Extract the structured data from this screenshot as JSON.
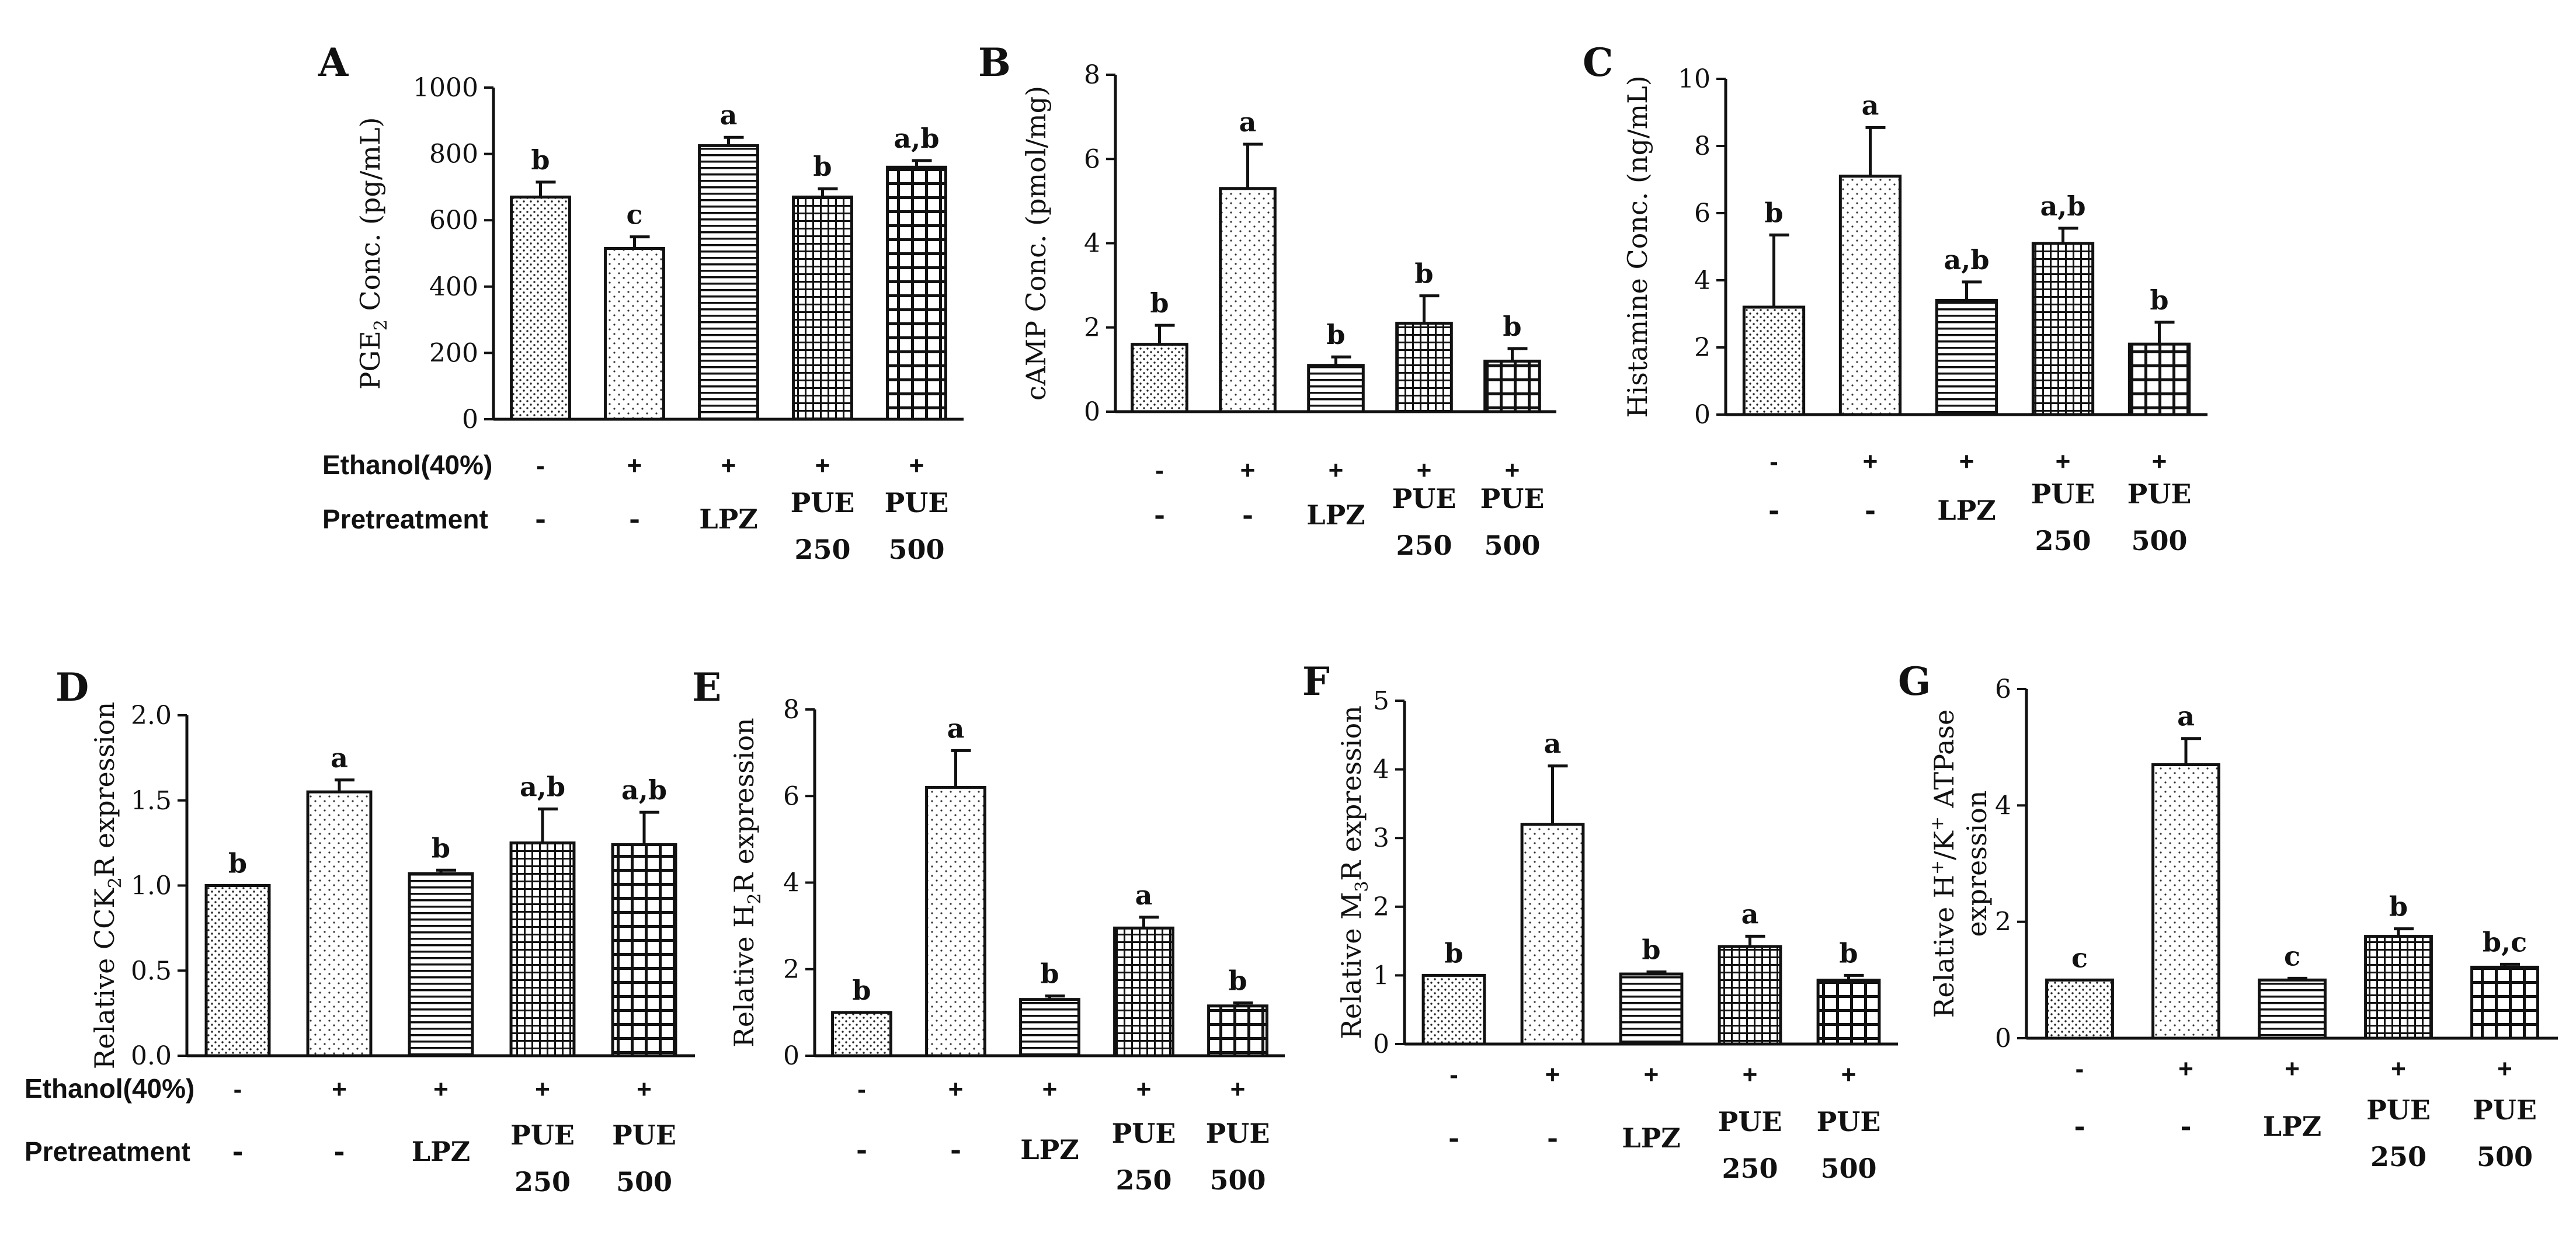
{
  "figure": {
    "row_labels": {
      "ethanol": "Ethanol(40%)",
      "pretreatment": "Pretreatment"
    }
  },
  "chart_data": [
    {
      "type": "bar",
      "panel": "A",
      "ylabel_parts": [
        "PGE",
        "2",
        " Conc. (pg/mL)"
      ],
      "ylim": [
        0,
        1000
      ],
      "yticks": [
        "0",
        "200",
        "400",
        "600",
        "800",
        "1000"
      ],
      "ethanol": [
        "-",
        "+",
        "+",
        "+",
        "+"
      ],
      "pretreatment": [
        [
          "-"
        ],
        [
          "-"
        ],
        [
          "LPZ"
        ],
        [
          "PUE",
          "250"
        ],
        [
          "PUE",
          "500"
        ]
      ],
      "values": [
        670,
        515,
        825,
        670,
        760
      ],
      "errors": [
        45,
        35,
        25,
        25,
        20
      ],
      "significance": [
        "b",
        "c",
        "a",
        "b",
        "a,b"
      ],
      "patterns": [
        "dots",
        "dots-sparse",
        "hlines",
        "grid-fine",
        "grid-bold"
      ]
    },
    {
      "type": "bar",
      "panel": "B",
      "ylabel_parts": [
        "cAMP Conc. (pmol/mg)"
      ],
      "ylim": [
        0,
        8
      ],
      "yticks": [
        "0",
        "2",
        "4",
        "6",
        "8"
      ],
      "ethanol": [
        "-",
        "+",
        "+",
        "+",
        "+"
      ],
      "pretreatment": [
        [
          "-"
        ],
        [
          "-"
        ],
        [
          "LPZ"
        ],
        [
          "PUE",
          "250"
        ],
        [
          "PUE",
          "500"
        ]
      ],
      "values": [
        1.6,
        5.3,
        1.1,
        2.1,
        1.2
      ],
      "errors": [
        0.45,
        1.05,
        0.2,
        0.65,
        0.3
      ],
      "significance": [
        "b",
        "a",
        "b",
        "b",
        "b"
      ],
      "patterns": [
        "dots",
        "dots-sparse",
        "hlines",
        "grid-fine",
        "grid-bold"
      ]
    },
    {
      "type": "bar",
      "panel": "C",
      "ylabel_parts": [
        "Histamine Conc. (ng/mL)"
      ],
      "ylim": [
        0,
        10
      ],
      "yticks": [
        "0",
        "2",
        "4",
        "6",
        "8",
        "10"
      ],
      "ethanol": [
        "-",
        "+",
        "+",
        "+",
        "+"
      ],
      "pretreatment": [
        [
          "-"
        ],
        [
          "-"
        ],
        [
          "LPZ"
        ],
        [
          "PUE",
          "250"
        ],
        [
          "PUE",
          "500"
        ]
      ],
      "values": [
        3.2,
        7.1,
        3.4,
        5.1,
        2.1
      ],
      "errors": [
        2.15,
        1.45,
        0.55,
        0.45,
        0.65
      ],
      "significance": [
        "b",
        "a",
        "a,b",
        "a,b",
        "b"
      ],
      "patterns": [
        "dots",
        "dots-sparse",
        "hlines",
        "grid-fine",
        "grid-bold"
      ]
    },
    {
      "type": "bar",
      "panel": "D",
      "ylabel_parts": [
        "Relative CCK",
        "2",
        "R expression"
      ],
      "ylim": [
        0,
        2.0
      ],
      "yticks": [
        "0.0",
        "0.5",
        "1.0",
        "1.5",
        "2.0"
      ],
      "ethanol": [
        "-",
        "+",
        "+",
        "+",
        "+"
      ],
      "pretreatment": [
        [
          "-"
        ],
        [
          "-"
        ],
        [
          "LPZ"
        ],
        [
          "PUE",
          "250"
        ],
        [
          "PUE",
          "500"
        ]
      ],
      "values": [
        1.0,
        1.55,
        1.07,
        1.25,
        1.24
      ],
      "errors": [
        0,
        0.07,
        0.02,
        0.2,
        0.19
      ],
      "significance": [
        "b",
        "a",
        "b",
        "a,b",
        "a,b"
      ],
      "patterns": [
        "dots",
        "dots-sparse",
        "hlines",
        "grid-fine",
        "grid-bold"
      ]
    },
    {
      "type": "bar",
      "panel": "E",
      "ylabel_parts": [
        "Relative H",
        "2",
        "R expression"
      ],
      "ylim": [
        0,
        8
      ],
      "yticks": [
        "0",
        "2",
        "4",
        "6",
        "8"
      ],
      "ethanol": [
        "-",
        "+",
        "+",
        "+",
        "+"
      ],
      "pretreatment": [
        [
          "-"
        ],
        [
          "-"
        ],
        [
          "LPZ"
        ],
        [
          "PUE",
          "250"
        ],
        [
          "PUE",
          "500"
        ]
      ],
      "values": [
        1.0,
        6.2,
        1.3,
        2.95,
        1.15
      ],
      "errors": [
        0,
        0.85,
        0.08,
        0.25,
        0.07
      ],
      "significance": [
        "b",
        "a",
        "b",
        "a",
        "b"
      ],
      "patterns": [
        "dots",
        "dots-sparse",
        "hlines",
        "grid-fine",
        "grid-bold"
      ]
    },
    {
      "type": "bar",
      "panel": "F",
      "ylabel_parts": [
        "Relative M",
        "3",
        "R expression"
      ],
      "ylim": [
        0,
        5
      ],
      "yticks": [
        "0",
        "1",
        "2",
        "3",
        "4",
        "5"
      ],
      "ethanol": [
        "-",
        "+",
        "+",
        "+",
        "+"
      ],
      "pretreatment": [
        [
          "-"
        ],
        [
          "-"
        ],
        [
          "LPZ"
        ],
        [
          "PUE",
          "250"
        ],
        [
          "PUE",
          "500"
        ]
      ],
      "values": [
        1.0,
        3.2,
        1.02,
        1.42,
        0.93
      ],
      "errors": [
        0,
        0.85,
        0.03,
        0.15,
        0.07
      ],
      "significance": [
        "b",
        "a",
        "b",
        "a",
        "b"
      ],
      "patterns": [
        "dots",
        "dots-sparse",
        "hlines",
        "grid-fine",
        "grid-bold"
      ]
    },
    {
      "type": "bar",
      "panel": "G",
      "ylabel_parts": [
        "Relative H",
        "+",
        "/K",
        "+",
        " ATPase"
      ],
      "ylabel_line2": "expression",
      "ylim": [
        0,
        6
      ],
      "yticks": [
        "0",
        "2",
        "4",
        "6"
      ],
      "ethanol": [
        "-",
        "+",
        "+",
        "+",
        "+"
      ],
      "pretreatment": [
        [
          "-"
        ],
        [
          "-"
        ],
        [
          "LPZ"
        ],
        [
          "PUE",
          "250"
        ],
        [
          "PUE",
          "500"
        ]
      ],
      "values": [
        1.0,
        4.7,
        1.0,
        1.75,
        1.22
      ],
      "errors": [
        0,
        0.45,
        0.03,
        0.13,
        0.05
      ],
      "significance": [
        "c",
        "a",
        "c",
        "b",
        "b,c"
      ],
      "patterns": [
        "dots",
        "dots-sparse",
        "hlines",
        "grid-fine",
        "grid-bold"
      ]
    }
  ]
}
